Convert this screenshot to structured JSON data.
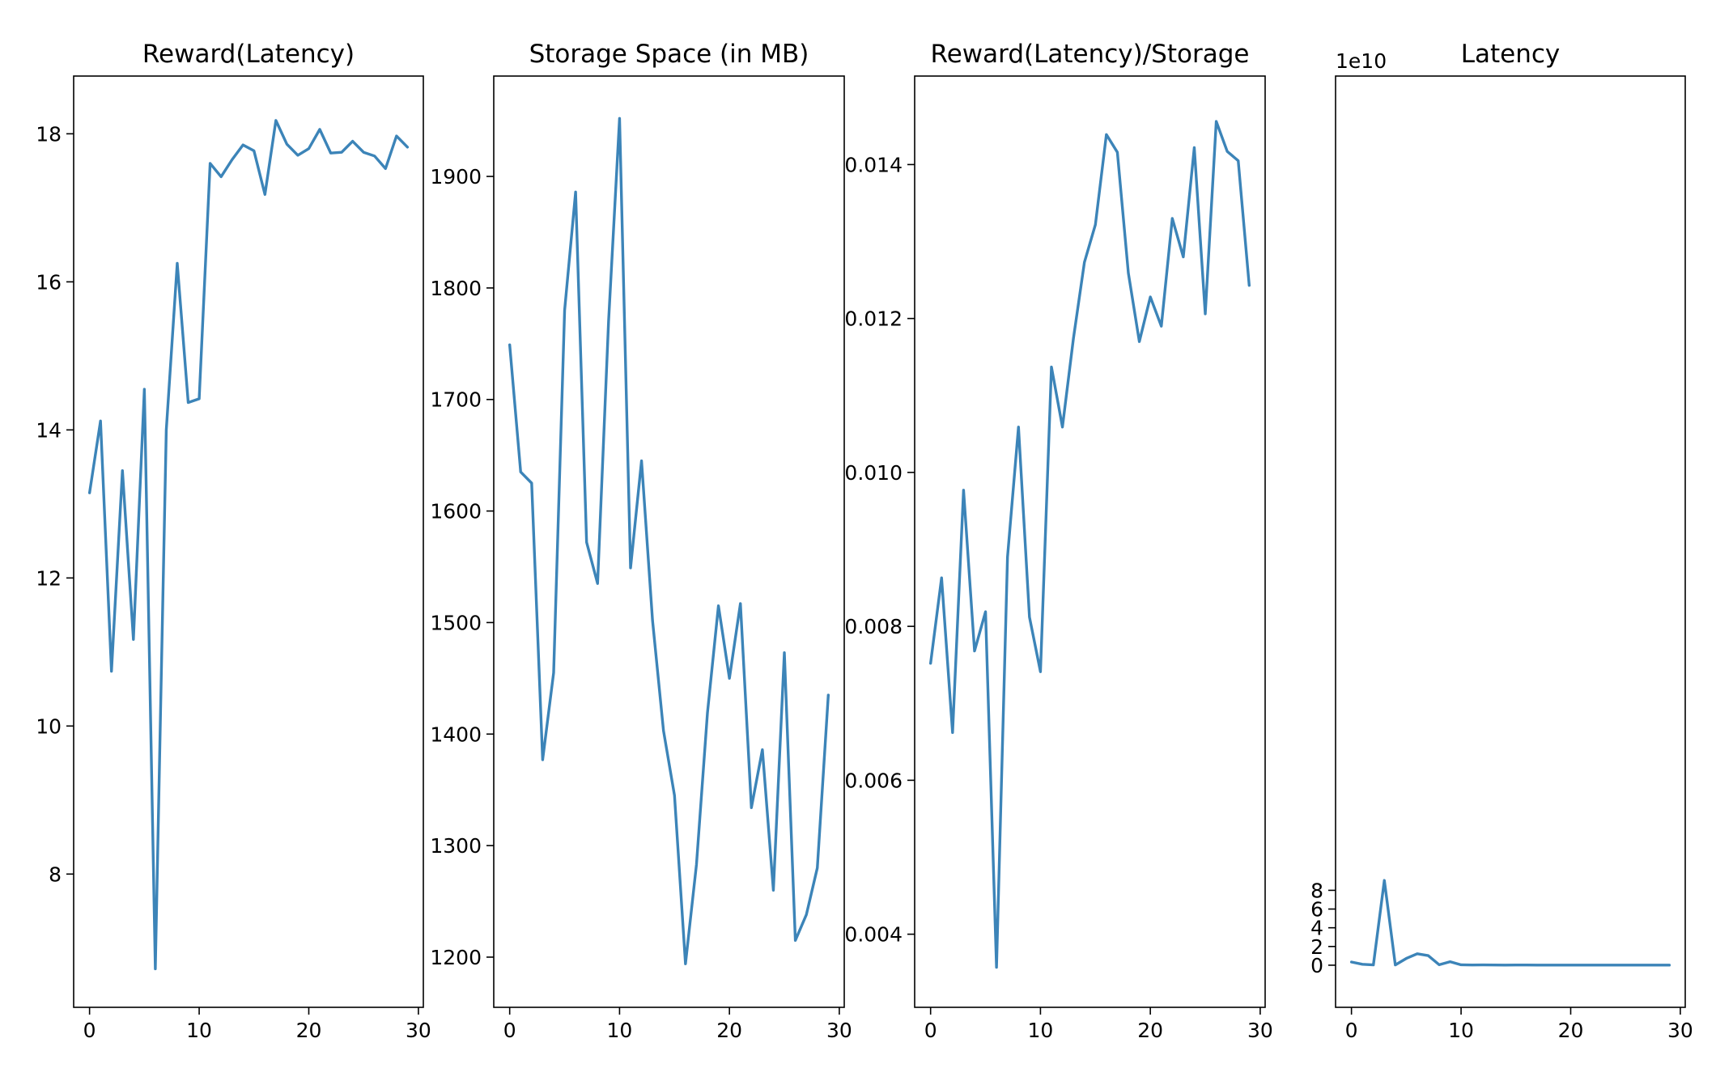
{
  "colors": {
    "series": "#3c84b8",
    "axis": "#000000",
    "background": "#ffffff"
  },
  "chart_data": [
    {
      "type": "line",
      "title": "Reward(Latency)",
      "xlabel": "",
      "ylabel": "",
      "xlim": [
        -1.45,
        30.45
      ],
      "ylim": [
        6.2,
        18.78
      ],
      "x_ticks": [
        0,
        10,
        20,
        30
      ],
      "x_tick_labels": [
        "0",
        "10",
        "20",
        "30"
      ],
      "y_ticks": [
        8,
        10,
        12,
        14,
        16,
        18
      ],
      "y_tick_labels": [
        "8",
        "10",
        "12",
        "14",
        "16",
        "18"
      ],
      "offset_text": "",
      "grid": false,
      "series": [
        {
          "x": [
            0,
            1,
            2,
            3,
            4,
            5,
            6,
            7,
            8,
            9,
            10,
            11,
            12,
            13,
            14,
            15,
            16,
            17,
            18,
            19,
            20,
            21,
            22,
            23,
            24,
            25,
            26,
            27,
            28,
            29
          ],
          "values": [
            13.15,
            14.12,
            10.74,
            13.45,
            11.17,
            14.55,
            6.72,
            14.0,
            16.25,
            14.37,
            14.42,
            17.6,
            17.42,
            17.65,
            17.85,
            17.77,
            17.18,
            18.18,
            17.86,
            17.71,
            17.8,
            18.06,
            17.74,
            17.75,
            17.9,
            17.75,
            17.7,
            17.53,
            17.97,
            17.82
          ]
        }
      ]
    },
    {
      "type": "line",
      "title": "Storage Space (in MB)",
      "xlabel": "",
      "ylabel": "",
      "xlim": [
        -1.45,
        30.45
      ],
      "ylim": [
        1155,
        1990
      ],
      "x_ticks": [
        0,
        10,
        20,
        30
      ],
      "x_tick_labels": [
        "0",
        "10",
        "20",
        "30"
      ],
      "y_ticks": [
        1200,
        1300,
        1400,
        1500,
        1600,
        1700,
        1800,
        1900
      ],
      "y_tick_labels": [
        "1200",
        "1300",
        "1400",
        "1500",
        "1600",
        "1700",
        "1800",
        "1900"
      ],
      "offset_text": "",
      "grid": false,
      "series": [
        {
          "x": [
            0,
            1,
            2,
            3,
            4,
            5,
            6,
            7,
            8,
            9,
            10,
            11,
            12,
            13,
            14,
            15,
            16,
            17,
            18,
            19,
            20,
            21,
            22,
            23,
            24,
            25,
            26,
            27,
            28,
            29
          ],
          "values": [
            1749,
            1635,
            1625,
            1377,
            1455,
            1780,
            1886,
            1572,
            1535,
            1770,
            1952,
            1549,
            1645,
            1502,
            1403,
            1345,
            1194,
            1283,
            1419,
            1515,
            1450,
            1517,
            1334,
            1386,
            1260,
            1473,
            1215,
            1238,
            1280,
            1435
          ]
        }
      ]
    },
    {
      "type": "line",
      "title": "Reward(Latency)/Storage",
      "xlabel": "",
      "ylabel": "",
      "xlim": [
        -1.45,
        30.45
      ],
      "ylim": [
        0.00305,
        0.01515
      ],
      "x_ticks": [
        0,
        10,
        20,
        30
      ],
      "x_tick_labels": [
        "0",
        "10",
        "20",
        "30"
      ],
      "y_ticks": [
        0.004,
        0.006,
        0.008,
        0.01,
        0.012,
        0.014
      ],
      "y_tick_labels": [
        "0.004",
        "0.006",
        "0.008",
        "0.010",
        "0.012",
        "0.014"
      ],
      "offset_text": "",
      "grid": false,
      "series": [
        {
          "x": [
            0,
            1,
            2,
            3,
            4,
            5,
            6,
            7,
            8,
            9,
            10,
            11,
            12,
            13,
            14,
            15,
            16,
            17,
            18,
            19,
            20,
            21,
            22,
            23,
            24,
            25,
            26,
            27,
            28,
            29
          ],
          "values": [
            0.00752,
            0.00863,
            0.00662,
            0.00977,
            0.00768,
            0.00819,
            0.00357,
            0.0089,
            0.01059,
            0.00812,
            0.00741,
            0.01137,
            0.01059,
            0.01174,
            0.01273,
            0.01322,
            0.01439,
            0.01416,
            0.01259,
            0.0117,
            0.01228,
            0.0119,
            0.0133,
            0.0128,
            0.01422,
            0.01206,
            0.01456,
            0.01417,
            0.01405,
            0.01243
          ]
        }
      ]
    },
    {
      "type": "line",
      "title": "Latency",
      "xlabel": "",
      "ylabel": "",
      "xlim": [
        -1.45,
        30.45
      ],
      "ylim": [
        -4.5,
        95
      ],
      "x_ticks": [
        0,
        10,
        20,
        30
      ],
      "x_tick_labels": [
        "0",
        "10",
        "20",
        "30"
      ],
      "y_ticks": [
        0,
        2,
        4,
        6,
        8
      ],
      "y_tick_labels": [
        "0",
        "2",
        "4",
        "6",
        "8"
      ],
      "y_unit_scale": 10000000000,
      "offset_text": "1e10",
      "grid": false,
      "series": [
        {
          "x": [
            0,
            1,
            2,
            3,
            4,
            5,
            6,
            7,
            8,
            9,
            10,
            11,
            12,
            13,
            14,
            15,
            16,
            17,
            18,
            19,
            20,
            21,
            22,
            23,
            24,
            25,
            26,
            27,
            28,
            29
          ],
          "values": [
            0.34,
            0.1,
            0.03,
            9.06,
            0.03,
            0.72,
            1.22,
            1.03,
            0.05,
            0.37,
            0.04,
            0.02,
            0.03,
            0.02,
            0.01,
            0.02,
            0.02,
            0.01,
            0.01,
            0.01,
            0.01,
            0.01,
            0.01,
            0.01,
            0.01,
            0.01,
            0.01,
            0.01,
            0.01,
            0.01
          ]
        }
      ]
    }
  ]
}
